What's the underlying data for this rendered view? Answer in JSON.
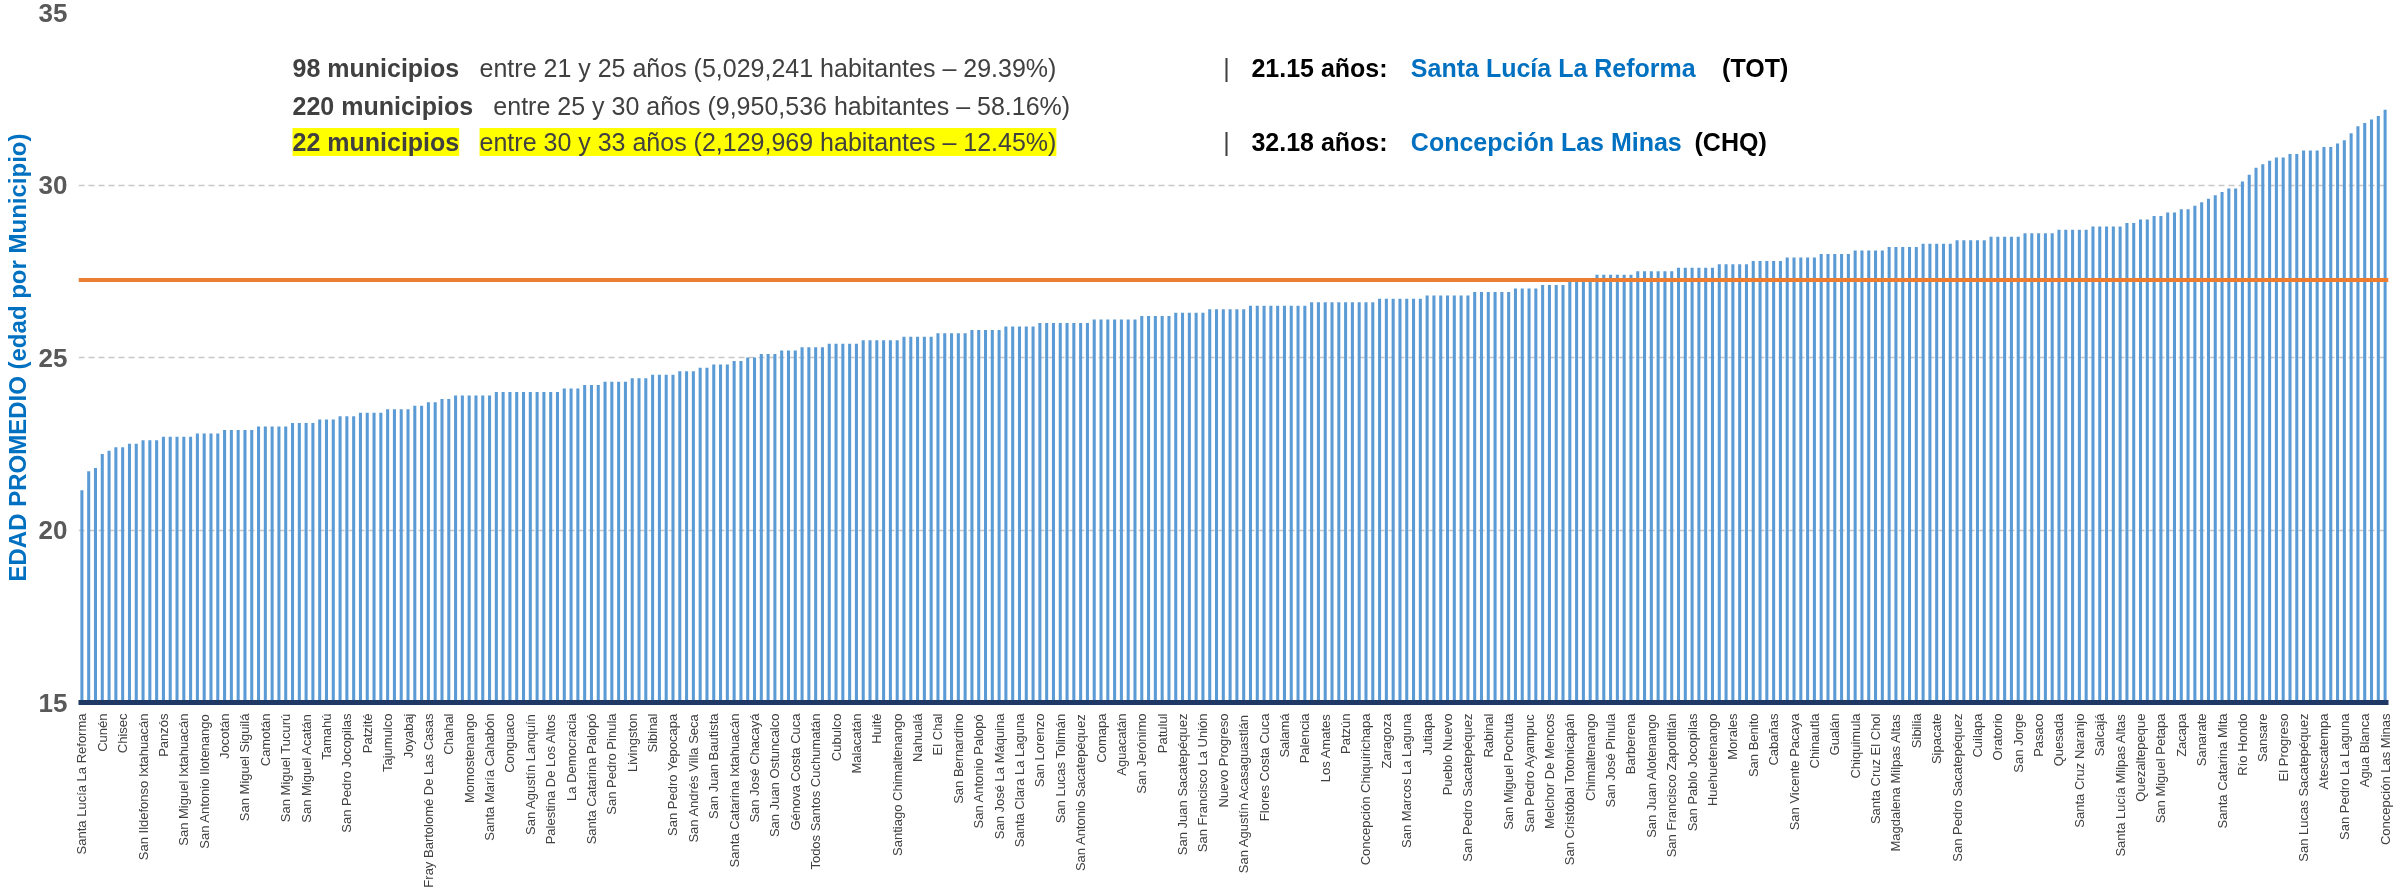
{
  "chart_data": {
    "type": "bar",
    "ylabel": "EDAD PROMEDIO (edad por Municipio)",
    "categories": [
      "Santa Lucía La Reforma",
      null,
      null,
      "Cunén",
      null,
      null,
      "Chisec",
      null,
      null,
      "San Ildefonso Ixtahuacán",
      null,
      null,
      "Panzós",
      null,
      null,
      "San Miguel Ixtahuacán",
      null,
      null,
      "San Antonio Ilotenango",
      null,
      null,
      "Jocotán",
      null,
      null,
      "San Miguel Siguilá",
      null,
      null,
      "Camotán",
      null,
      null,
      "San Miguel Tucurú",
      null,
      null,
      "San Miguel Acatán",
      null,
      null,
      "Tamahú",
      null,
      null,
      "San Pedro Jocopilas",
      null,
      null,
      "Patzité",
      null,
      null,
      "Tajumulco",
      null,
      null,
      "Joyabaj",
      null,
      null,
      "Fray Bartolomé De Las Casas",
      null,
      null,
      "Chahal",
      null,
      null,
      "Momostenango",
      null,
      null,
      "Santa María Cahabón",
      null,
      null,
      "Conguaco",
      null,
      null,
      "San Agustín Lanquín",
      null,
      null,
      "Palestina De Los Altos",
      null,
      null,
      "La Democracia",
      null,
      null,
      "Santa Catarina Palopó",
      null,
      null,
      "San Pedro Pinula",
      null,
      null,
      "Livingston",
      null,
      null,
      "Sibinal",
      null,
      null,
      "San Pedro Yepocapa",
      null,
      null,
      "San Andrés Villa Seca",
      null,
      null,
      "San Juan Bautista",
      null,
      null,
      "Santa Catarina Ixtahuacán",
      null,
      null,
      "San José Chacayá",
      null,
      null,
      "San Juan Ostuncalco",
      null,
      null,
      "Génova Costa Cuca",
      null,
      null,
      "Todos Santos Cuchumatán",
      null,
      null,
      "Cubulco",
      null,
      null,
      "Malacatán",
      null,
      null,
      "Huité",
      null,
      null,
      "Santiago Chimaltenango",
      null,
      null,
      "Nahualá",
      null,
      null,
      "El Chal",
      null,
      null,
      "San Bernardino",
      null,
      null,
      "San Antonio Palopó",
      null,
      null,
      "San José La Máquina",
      null,
      null,
      "Santa Clara La Laguna",
      null,
      null,
      "San Lorenzo",
      null,
      null,
      "San Lucas Tolimán",
      null,
      null,
      "San Antonio Sacatepéquez",
      null,
      null,
      "Comapa",
      null,
      null,
      "Aguacatán",
      null,
      null,
      "San Jerónimo",
      null,
      null,
      "Patulul",
      null,
      null,
      "San Juan Sacatepéquez",
      null,
      null,
      "San Francisco La Unión",
      null,
      null,
      "Nuevo Progreso",
      null,
      null,
      "San Agustín Acasaguastlán",
      null,
      null,
      "Flores Costa Cuca",
      null,
      null,
      "Salamá",
      null,
      null,
      "Palencia",
      null,
      null,
      "Los Amates",
      null,
      null,
      "Patzún",
      null,
      null,
      "Concepción Chiquirichapa",
      null,
      null,
      "Zaragoza",
      null,
      null,
      "San Marcos La Laguna",
      null,
      null,
      "Jutiapa",
      null,
      null,
      "Pueblo Nuevo",
      null,
      null,
      "San Pedro Sacatepéquez",
      null,
      null,
      "Rabinal",
      null,
      null,
      "San Miguel Pochuta",
      null,
      null,
      "San Pedro Ayampuc",
      null,
      null,
      "Melchor De Mencos",
      null,
      null,
      "San Cristóbal Totonicapán",
      null,
      null,
      "Chimaltenango",
      null,
      null,
      "San José Pinula",
      null,
      null,
      "Barberena",
      null,
      null,
      "San Juan Alotenango",
      null,
      null,
      "San Francisco Zapotitlán",
      null,
      null,
      "San Pablo Jocopilas",
      null,
      null,
      "Huehuetenango",
      null,
      null,
      "Morales",
      null,
      null,
      "San Benito",
      null,
      null,
      "Cabañas",
      null,
      null,
      "San Vicente Pacaya",
      null,
      null,
      "Chinautla",
      null,
      null,
      "Gualán",
      null,
      null,
      "Chiquimula",
      null,
      null,
      "Santa Cruz El Chol",
      null,
      null,
      "Magdalena Milpas Altas",
      null,
      null,
      "Sibilia",
      null,
      null,
      "Sipacate",
      null,
      null,
      "San Pedro Sacatepéquez",
      null,
      null,
      "Cuilapa",
      null,
      null,
      "Oratorio",
      null,
      null,
      "San Jorge",
      null,
      null,
      "Pasaco",
      null,
      null,
      "Quesada",
      null,
      null,
      "Santa Cruz Naranjo",
      null,
      null,
      "Salcajá",
      null,
      null,
      "Santa Lucía Milpas Altas",
      null,
      null,
      "Quezaltepeque",
      null,
      null,
      "San Miguel Petapa",
      null,
      null,
      "Zacapa",
      null,
      null,
      "Sanarate",
      null,
      null,
      "Santa Catarina Mita",
      null,
      null,
      "Río Hondo",
      null,
      null,
      "Sansare",
      null,
      null,
      "El Progreso",
      null,
      null,
      "San Lucas Sacatepéquez",
      null,
      null,
      "Atescatempa",
      null,
      null,
      "San Pedro La Laguna",
      null,
      null,
      "Agua Blanca",
      null,
      null,
      "Concepción Las Minas"
    ],
    "values": [
      21.15,
      21.7,
      21.8,
      22.2,
      22.3,
      22.4,
      22.4,
      22.5,
      22.5,
      22.6,
      22.6,
      22.6,
      22.7,
      22.7,
      22.7,
      22.7,
      22.7,
      22.8,
      22.8,
      22.8,
      22.8,
      22.9,
      22.9,
      22.9,
      22.9,
      22.9,
      23.0,
      23.0,
      23.0,
      23.0,
      23.0,
      23.1,
      23.1,
      23.1,
      23.1,
      23.2,
      23.2,
      23.2,
      23.3,
      23.3,
      23.3,
      23.4,
      23.4,
      23.4,
      23.4,
      23.5,
      23.5,
      23.5,
      23.5,
      23.6,
      23.6,
      23.7,
      23.7,
      23.8,
      23.8,
      23.9,
      23.9,
      23.9,
      23.9,
      23.9,
      23.9,
      24.0,
      24.0,
      24.0,
      24.0,
      24.0,
      24.0,
      24.0,
      24.0,
      24.0,
      24.0,
      24.1,
      24.1,
      24.1,
      24.2,
      24.2,
      24.2,
      24.3,
      24.3,
      24.3,
      24.3,
      24.4,
      24.4,
      24.4,
      24.5,
      24.5,
      24.5,
      24.5,
      24.6,
      24.6,
      24.6,
      24.7,
      24.7,
      24.8,
      24.8,
      24.8,
      24.9,
      24.9,
      25.0,
      25.0,
      25.1,
      25.1,
      25.1,
      25.2,
      25.2,
      25.2,
      25.3,
      25.3,
      25.3,
      25.3,
      25.4,
      25.4,
      25.4,
      25.4,
      25.4,
      25.5,
      25.5,
      25.5,
      25.5,
      25.5,
      25.5,
      25.6,
      25.6,
      25.6,
      25.6,
      25.6,
      25.7,
      25.7,
      25.7,
      25.7,
      25.7,
      25.8,
      25.8,
      25.8,
      25.8,
      25.8,
      25.9,
      25.9,
      25.9,
      25.9,
      25.9,
      26.0,
      26.0,
      26.0,
      26.0,
      26.0,
      26.0,
      26.0,
      26.0,
      26.1,
      26.1,
      26.1,
      26.1,
      26.1,
      26.1,
      26.1,
      26.2,
      26.2,
      26.2,
      26.2,
      26.2,
      26.3,
      26.3,
      26.3,
      26.3,
      26.3,
      26.4,
      26.4,
      26.4,
      26.4,
      26.4,
      26.4,
      26.5,
      26.5,
      26.5,
      26.5,
      26.5,
      26.5,
      26.5,
      26.5,
      26.5,
      26.6,
      26.6,
      26.6,
      26.6,
      26.6,
      26.6,
      26.6,
      26.6,
      26.6,
      26.6,
      26.7,
      26.7,
      26.7,
      26.7,
      26.7,
      26.7,
      26.7,
      26.8,
      26.8,
      26.8,
      26.8,
      26.8,
      26.8,
      26.8,
      26.9,
      26.9,
      26.9,
      26.9,
      26.9,
      26.9,
      27.0,
      27.0,
      27.0,
      27.0,
      27.1,
      27.1,
      27.1,
      27.1,
      27.2,
      27.2,
      27.2,
      27.2,
      27.4,
      27.4,
      27.4,
      27.4,
      27.4,
      27.4,
      27.5,
      27.5,
      27.5,
      27.5,
      27.5,
      27.5,
      27.6,
      27.6,
      27.6,
      27.6,
      27.6,
      27.6,
      27.7,
      27.7,
      27.7,
      27.7,
      27.7,
      27.8,
      27.8,
      27.8,
      27.8,
      27.8,
      27.9,
      27.9,
      27.9,
      27.9,
      27.9,
      28.0,
      28.0,
      28.0,
      28.0,
      28.0,
      28.1,
      28.1,
      28.1,
      28.1,
      28.1,
      28.2,
      28.2,
      28.2,
      28.2,
      28.2,
      28.3,
      28.3,
      28.3,
      28.3,
      28.3,
      28.4,
      28.4,
      28.4,
      28.4,
      28.4,
      28.5,
      28.5,
      28.5,
      28.5,
      28.5,
      28.6,
      28.6,
      28.6,
      28.6,
      28.6,
      28.7,
      28.7,
      28.7,
      28.7,
      28.7,
      28.8,
      28.8,
      28.8,
      28.8,
      28.8,
      28.9,
      28.9,
      29.0,
      29.0,
      29.1,
      29.1,
      29.2,
      29.2,
      29.3,
      29.3,
      29.4,
      29.5,
      29.6,
      29.7,
      29.8,
      29.9,
      29.9,
      30.1,
      30.3,
      30.5,
      30.6,
      30.7,
      30.8,
      30.8,
      30.9,
      30.9,
      31.0,
      31.0,
      31.0,
      31.1,
      31.1,
      31.2,
      31.3,
      31.5,
      31.7,
      31.8,
      31.9,
      32.0,
      32.18
    ],
    "color": "#5b9bd5",
    "ylim": [
      15,
      35
    ],
    "yticks": [
      15,
      20,
      25,
      30,
      35
    ],
    "grid": "y",
    "ref_lines": [
      {
        "axis": "y",
        "value": 27.25,
        "color": "#ed7d31"
      }
    ],
    "annotations": [
      "98 municipios",
      "entre 21 y 25 años (5,029,241 habitantes – 29.39%)",
      "|",
      "21.15 años:",
      "Santa Lucía La Reforma",
      "(TOT)",
      "220 municipios",
      "entre 25 y 30 años (9,950,536 habitantes – 58.16%)",
      "22 municipios",
      "entre 30 y 33 años (2,129,969 habitantes – 12.45%)",
      "|",
      "32.18 años:",
      "Concepción Las Minas",
      "(CHQ)"
    ]
  }
}
